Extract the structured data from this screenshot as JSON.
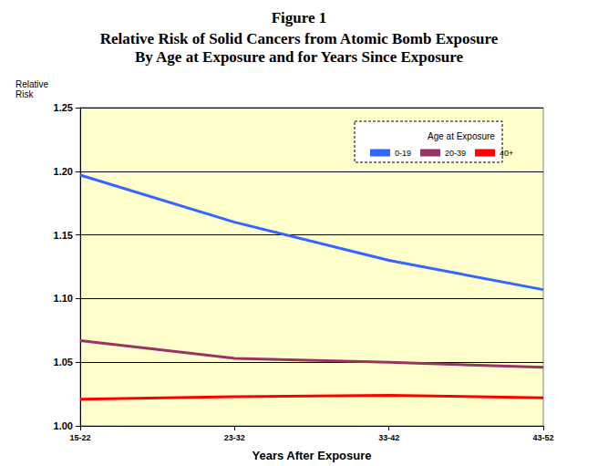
{
  "chart_data": {
    "type": "line",
    "title": "Figure 1",
    "subtitle": [
      "Relative Risk of Solid Cancers from Atomic Bomb Exposure",
      "By Age at Exposure and for Years Since Exposure"
    ],
    "x_label": "Years After Exposure",
    "y_label": "Relative Risk",
    "legend_title": "Age at Exposure",
    "categories": [
      "15-22",
      "23-32",
      "33-42",
      "43-52"
    ],
    "series": [
      {
        "name": "0-19",
        "color": "#3366ff",
        "values": [
          1.197,
          1.16,
          1.13,
          1.107
        ]
      },
      {
        "name": "20-39",
        "color": "#993366",
        "values": [
          1.067,
          1.053,
          1.05,
          1.046
        ]
      },
      {
        "name": "40+",
        "color": "#ff0000",
        "values": [
          1.021,
          1.023,
          1.024,
          1.022
        ]
      }
    ],
    "ylim": [
      1.0,
      1.25
    ],
    "yticks": [
      {
        "value": 1.0,
        "label": "1.00"
      },
      1.05,
      {
        "value": 1.1,
        "label": "1.10"
      },
      1.15,
      {
        "value": 1.2,
        "label": "1.20"
      },
      1.25
    ],
    "grid": true,
    "legend": "upper right"
  }
}
